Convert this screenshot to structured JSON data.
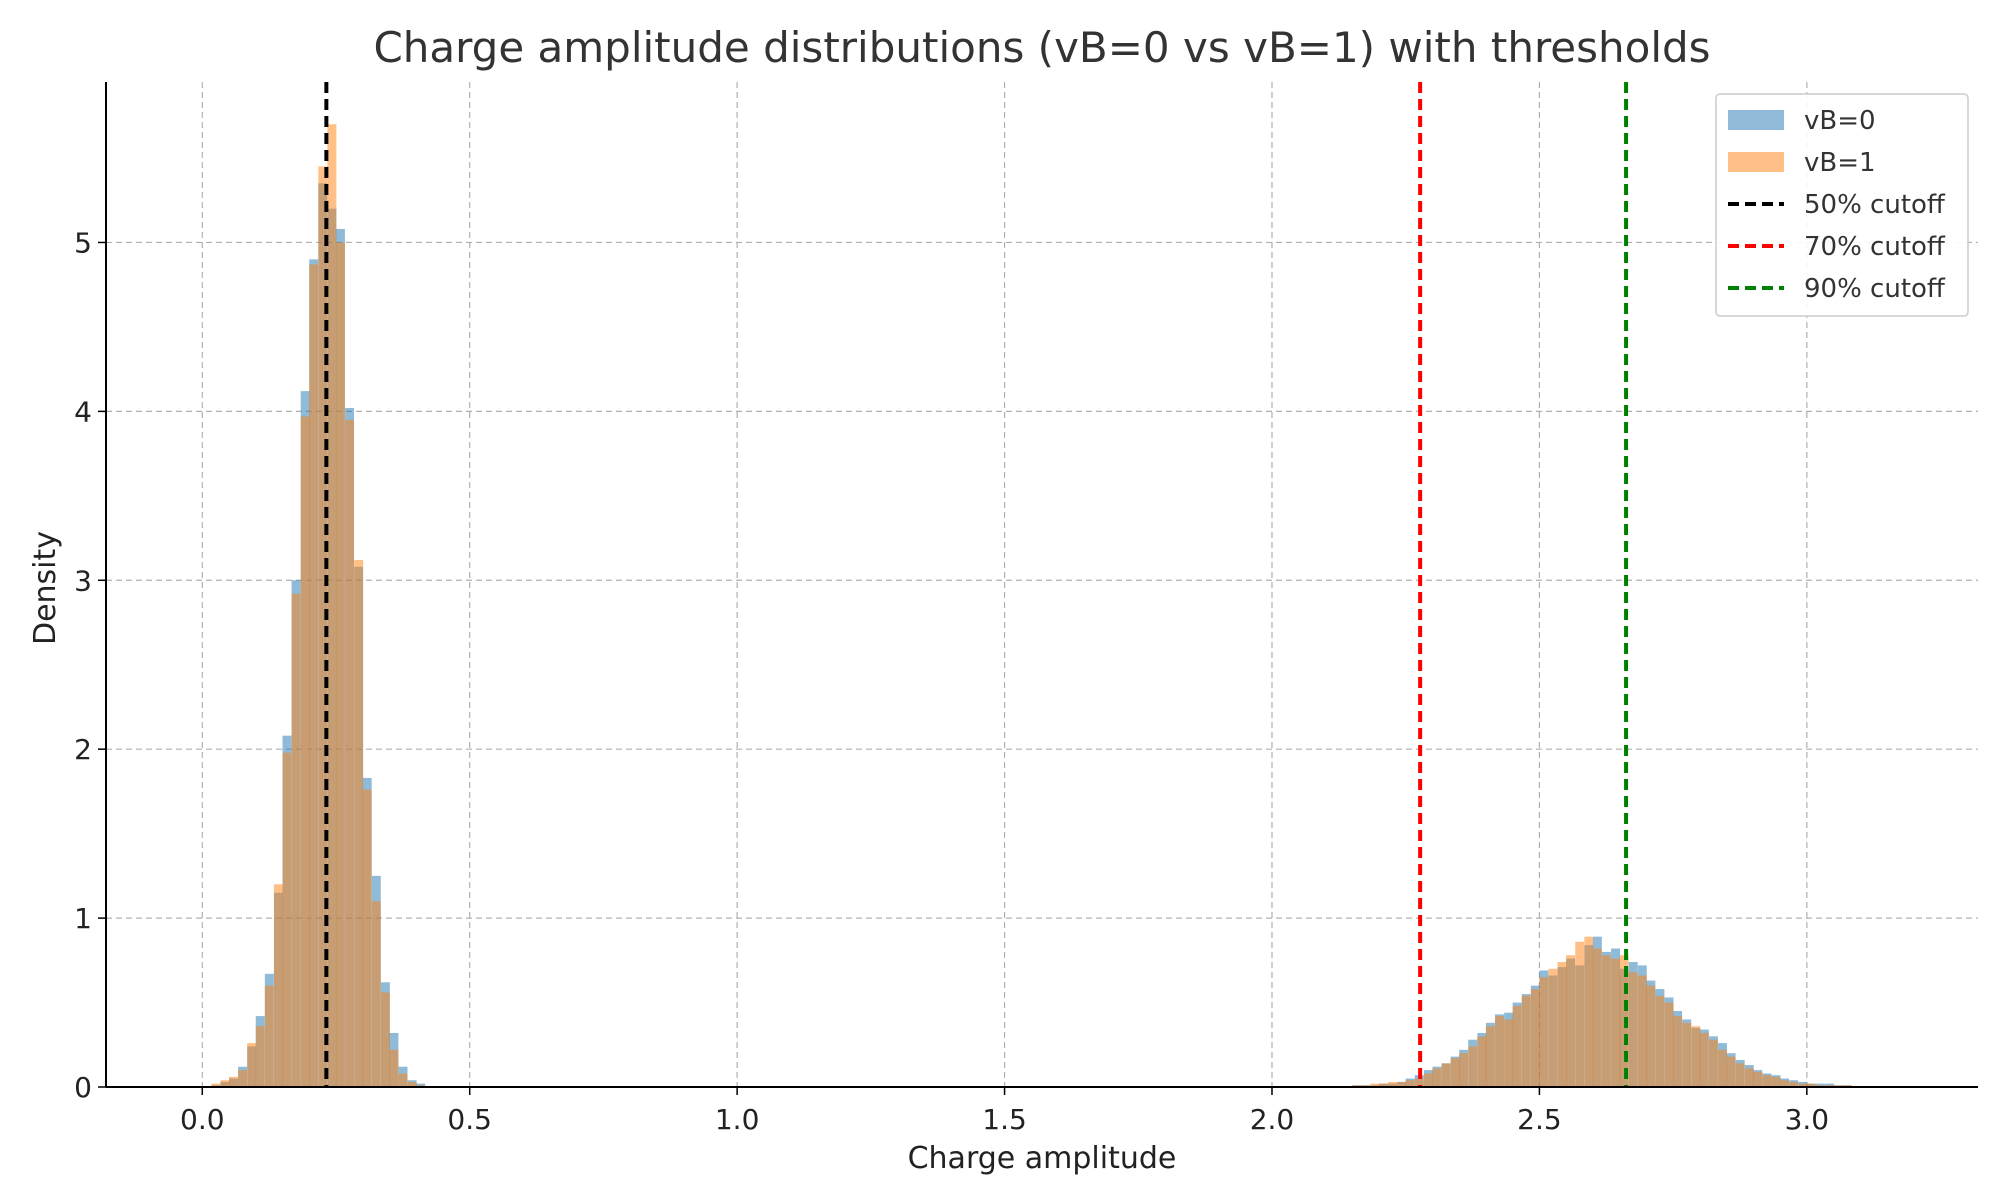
{
  "chart_data": {
    "type": "bar",
    "title": "Charge amplitude distributions (vB=0 vs vB=1) with thresholds",
    "xlabel": "Charge amplitude",
    "ylabel": "Density",
    "xlim": [
      -0.18,
      3.32
    ],
    "ylim": [
      0,
      5.95
    ],
    "grid": true,
    "legend_position": "top-right",
    "x_ticks": [
      0.0,
      0.5,
      1.0,
      1.5,
      2.0,
      2.5,
      3.0
    ],
    "x_tick_labels": [
      "0.0",
      "0.5",
      "1.0",
      "1.5",
      "2.0",
      "2.5",
      "3.0"
    ],
    "y_ticks": [
      0,
      1,
      2,
      3,
      4,
      5
    ],
    "y_tick_labels": [
      "0",
      "1",
      "2",
      "3",
      "4",
      "5"
    ],
    "histogram": {
      "bin_width": 0.0167,
      "series": [
        {
          "name": "vB=0",
          "color": "#1f77b4",
          "opacity": 0.5,
          "bins": [
            [
              0.017,
              0.01
            ],
            [
              0.034,
              0.03
            ],
            [
              0.05,
              0.05
            ],
            [
              0.067,
              0.12
            ],
            [
              0.084,
              0.24
            ],
            [
              0.1,
              0.42
            ],
            [
              0.117,
              0.67
            ],
            [
              0.134,
              1.15
            ],
            [
              0.15,
              2.08
            ],
            [
              0.167,
              3.0
            ],
            [
              0.184,
              4.12
            ],
            [
              0.2,
              4.9
            ],
            [
              0.217,
              5.35
            ],
            [
              0.234,
              5.2
            ],
            [
              0.25,
              5.08
            ],
            [
              0.267,
              4.02
            ],
            [
              0.284,
              3.08
            ],
            [
              0.3,
              1.83
            ],
            [
              0.317,
              1.25
            ],
            [
              0.334,
              0.62
            ],
            [
              0.35,
              0.32
            ],
            [
              0.367,
              0.12
            ],
            [
              0.384,
              0.04
            ],
            [
              0.4,
              0.02
            ],
            [
              2.15,
              0.01
            ],
            [
              2.167,
              0.01
            ],
            [
              2.184,
              0.01
            ],
            [
              2.2,
              0.02
            ],
            [
              2.217,
              0.02
            ],
            [
              2.234,
              0.03
            ],
            [
              2.25,
              0.05
            ],
            [
              2.267,
              0.07
            ],
            [
              2.284,
              0.1
            ],
            [
              2.3,
              0.12
            ],
            [
              2.317,
              0.14
            ],
            [
              2.334,
              0.18
            ],
            [
              2.35,
              0.22
            ],
            [
              2.367,
              0.28
            ],
            [
              2.384,
              0.32
            ],
            [
              2.4,
              0.38
            ],
            [
              2.417,
              0.43
            ],
            [
              2.434,
              0.44
            ],
            [
              2.45,
              0.5
            ],
            [
              2.467,
              0.55
            ],
            [
              2.484,
              0.6
            ],
            [
              2.5,
              0.69
            ],
            [
              2.517,
              0.66
            ],
            [
              2.534,
              0.71
            ],
            [
              2.55,
              0.76
            ],
            [
              2.567,
              0.72
            ],
            [
              2.584,
              0.84
            ],
            [
              2.6,
              0.89
            ],
            [
              2.617,
              0.8
            ],
            [
              2.634,
              0.82
            ],
            [
              2.65,
              0.7
            ],
            [
              2.667,
              0.74
            ],
            [
              2.684,
              0.72
            ],
            [
              2.7,
              0.63
            ],
            [
              2.717,
              0.58
            ],
            [
              2.734,
              0.53
            ],
            [
              2.75,
              0.45
            ],
            [
              2.767,
              0.4
            ],
            [
              2.784,
              0.35
            ],
            [
              2.8,
              0.34
            ],
            [
              2.817,
              0.3
            ],
            [
              2.834,
              0.26
            ],
            [
              2.85,
              0.2
            ],
            [
              2.867,
              0.16
            ],
            [
              2.884,
              0.13
            ],
            [
              2.9,
              0.1
            ],
            [
              2.917,
              0.08
            ],
            [
              2.934,
              0.07
            ],
            [
              2.95,
              0.05
            ],
            [
              2.967,
              0.04
            ],
            [
              2.984,
              0.03
            ],
            [
              3.0,
              0.02
            ],
            [
              3.017,
              0.02
            ],
            [
              3.034,
              0.02
            ],
            [
              3.05,
              0.01
            ],
            [
              3.067,
              0.01
            ]
          ]
        },
        {
          "name": "vB=1",
          "color": "#ff7f0e",
          "opacity": 0.5,
          "bins": [
            [
              0.017,
              0.02
            ],
            [
              0.034,
              0.04
            ],
            [
              0.05,
              0.06
            ],
            [
              0.067,
              0.1
            ],
            [
              0.084,
              0.26
            ],
            [
              0.1,
              0.36
            ],
            [
              0.117,
              0.6
            ],
            [
              0.134,
              1.2
            ],
            [
              0.15,
              1.98
            ],
            [
              0.167,
              2.92
            ],
            [
              0.184,
              3.97
            ],
            [
              0.2,
              4.87
            ],
            [
              0.217,
              5.45
            ],
            [
              0.234,
              5.7
            ],
            [
              0.25,
              5.0
            ],
            [
              0.267,
              3.95
            ],
            [
              0.284,
              3.12
            ],
            [
              0.3,
              1.76
            ],
            [
              0.317,
              1.1
            ],
            [
              0.334,
              0.56
            ],
            [
              0.35,
              0.22
            ],
            [
              0.367,
              0.08
            ],
            [
              0.384,
              0.03
            ],
            [
              0.4,
              0.01
            ],
            [
              2.15,
              0.01
            ],
            [
              2.167,
              0.01
            ],
            [
              2.184,
              0.02
            ],
            [
              2.2,
              0.02
            ],
            [
              2.217,
              0.03
            ],
            [
              2.234,
              0.03
            ],
            [
              2.25,
              0.04
            ],
            [
              2.267,
              0.05
            ],
            [
              2.284,
              0.08
            ],
            [
              2.3,
              0.11
            ],
            [
              2.317,
              0.14
            ],
            [
              2.334,
              0.17
            ],
            [
              2.35,
              0.2
            ],
            [
              2.367,
              0.24
            ],
            [
              2.384,
              0.3
            ],
            [
              2.4,
              0.36
            ],
            [
              2.417,
              0.42
            ],
            [
              2.434,
              0.4
            ],
            [
              2.45,
              0.48
            ],
            [
              2.467,
              0.54
            ],
            [
              2.484,
              0.58
            ],
            [
              2.5,
              0.65
            ],
            [
              2.517,
              0.7
            ],
            [
              2.534,
              0.74
            ],
            [
              2.55,
              0.78
            ],
            [
              2.567,
              0.86
            ],
            [
              2.584,
              0.89
            ],
            [
              2.6,
              0.82
            ],
            [
              2.617,
              0.78
            ],
            [
              2.634,
              0.76
            ],
            [
              2.65,
              0.78
            ],
            [
              2.667,
              0.68
            ],
            [
              2.684,
              0.66
            ],
            [
              2.7,
              0.6
            ],
            [
              2.717,
              0.54
            ],
            [
              2.734,
              0.5
            ],
            [
              2.75,
              0.42
            ],
            [
              2.767,
              0.38
            ],
            [
              2.784,
              0.36
            ],
            [
              2.8,
              0.32
            ],
            [
              2.817,
              0.28
            ],
            [
              2.834,
              0.22
            ],
            [
              2.85,
              0.18
            ],
            [
              2.867,
              0.14
            ],
            [
              2.884,
              0.11
            ],
            [
              2.9,
              0.09
            ],
            [
              2.917,
              0.07
            ],
            [
              2.934,
              0.06
            ],
            [
              2.95,
              0.04
            ],
            [
              2.967,
              0.03
            ],
            [
              2.984,
              0.02
            ],
            [
              3.0,
              0.02
            ],
            [
              3.017,
              0.01
            ],
            [
              3.034,
              0.01
            ],
            [
              3.05,
              0.01
            ],
            [
              3.067,
              0.01
            ]
          ]
        }
      ]
    },
    "thresholds": [
      {
        "name": "50% cutoff",
        "x": 0.232,
        "color": "#000000"
      },
      {
        "name": "70% cutoff",
        "x": 2.277,
        "color": "#ff0000"
      },
      {
        "name": "90% cutoff",
        "x": 2.662,
        "color": "#008000"
      }
    ],
    "legend": [
      {
        "label": "vB=0",
        "kind": "patch",
        "color": "#1f77b4",
        "opacity": 0.5
      },
      {
        "label": "vB=1",
        "kind": "patch",
        "color": "#ff7f0e",
        "opacity": 0.5
      },
      {
        "label": "50% cutoff",
        "kind": "dashed-line",
        "color": "#000000"
      },
      {
        "label": "70% cutoff",
        "kind": "dashed-line",
        "color": "#ff0000"
      },
      {
        "label": "90% cutoff",
        "kind": "dashed-line",
        "color": "#008000"
      }
    ]
  }
}
